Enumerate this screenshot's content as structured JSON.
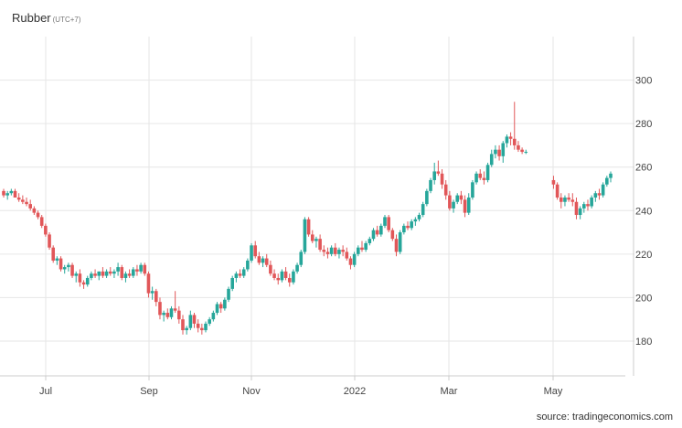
{
  "title": "Rubber",
  "timezone": "(UTC+7)",
  "source": "source: tradingeconomics.com",
  "colors": {
    "up": "#26a69a",
    "down": "#e15759",
    "grid": "#e6e6e6",
    "axis": "#cccccc"
  },
  "chart_data": {
    "type": "candlestick",
    "title": "Rubber",
    "y_ticks": [
      180,
      200,
      220,
      240,
      260,
      280,
      300
    ],
    "ylim": [
      164,
      320
    ],
    "x_ticks": [
      "Jul",
      "Sep",
      "Nov",
      "2022",
      "Mar",
      "May"
    ],
    "y_axis_position": "right",
    "grid": true,
    "ohlc_daily_approx": [
      [
        249,
        250,
        246,
        247
      ],
      [
        247,
        249,
        245,
        248
      ],
      [
        248,
        250,
        247,
        249
      ],
      [
        249,
        250,
        246,
        246
      ],
      [
        246,
        248,
        244,
        245
      ],
      [
        245,
        247,
        243,
        244
      ],
      [
        244,
        246,
        242,
        243
      ],
      [
        243,
        245,
        240,
        241
      ],
      [
        241,
        242,
        238,
        239
      ],
      [
        239,
        240,
        236,
        237
      ],
      [
        237,
        238,
        232,
        233
      ],
      [
        233,
        234,
        228,
        229
      ],
      [
        229,
        230,
        222,
        223
      ],
      [
        223,
        224,
        216,
        217
      ],
      [
        217,
        219,
        215,
        218
      ],
      [
        218,
        219,
        212,
        213
      ],
      [
        213,
        215,
        211,
        214
      ],
      [
        214,
        216,
        212,
        215
      ],
      [
        215,
        216,
        209,
        210
      ],
      [
        210,
        212,
        207,
        211
      ],
      [
        211,
        213,
        205,
        207
      ],
      [
        207,
        208,
        204,
        206
      ],
      [
        206,
        210,
        205,
        209
      ],
      [
        209,
        212,
        208,
        211
      ],
      [
        211,
        213,
        209,
        210
      ],
      [
        210,
        212,
        208,
        212
      ],
      [
        212,
        214,
        209,
        210
      ],
      [
        210,
        213,
        209,
        212
      ],
      [
        212,
        214,
        210,
        211
      ],
      [
        211,
        213,
        209,
        212
      ],
      [
        212,
        216,
        210,
        214
      ],
      [
        214,
        215,
        208,
        209
      ],
      [
        209,
        212,
        207,
        211
      ],
      [
        211,
        213,
        209,
        210
      ],
      [
        210,
        214,
        209,
        213
      ],
      [
        213,
        215,
        210,
        212
      ],
      [
        212,
        216,
        211,
        215
      ],
      [
        215,
        216,
        210,
        211
      ],
      [
        211,
        212,
        200,
        202
      ],
      [
        202,
        205,
        199,
        203
      ],
      [
        203,
        204,
        196,
        198
      ],
      [
        198,
        200,
        190,
        192
      ],
      [
        192,
        194,
        189,
        193
      ],
      [
        193,
        195,
        190,
        191
      ],
      [
        191,
        196,
        190,
        195
      ],
      [
        195,
        203,
        193,
        194
      ],
      [
        194,
        196,
        188,
        190
      ],
      [
        190,
        192,
        183,
        185
      ],
      [
        185,
        187,
        183,
        186
      ],
      [
        186,
        194,
        185,
        192
      ],
      [
        192,
        193,
        186,
        188
      ],
      [
        188,
        190,
        184,
        186
      ],
      [
        186,
        188,
        183,
        185
      ],
      [
        185,
        189,
        184,
        188
      ],
      [
        188,
        191,
        187,
        190
      ],
      [
        190,
        194,
        189,
        193
      ],
      [
        193,
        198,
        192,
        197
      ],
      [
        197,
        198,
        193,
        195
      ],
      [
        195,
        200,
        194,
        199
      ],
      [
        199,
        205,
        198,
        204
      ],
      [
        204,
        210,
        203,
        209
      ],
      [
        209,
        212,
        207,
        211
      ],
      [
        211,
        213,
        209,
        210
      ],
      [
        210,
        214,
        209,
        213
      ],
      [
        213,
        218,
        212,
        217
      ],
      [
        217,
        225,
        216,
        224
      ],
      [
        224,
        226,
        218,
        219
      ],
      [
        219,
        221,
        215,
        216
      ],
      [
        216,
        219,
        214,
        218
      ],
      [
        218,
        220,
        214,
        215
      ],
      [
        215,
        217,
        210,
        211
      ],
      [
        211,
        213,
        208,
        209
      ],
      [
        209,
        211,
        206,
        208
      ],
      [
        208,
        213,
        207,
        212
      ],
      [
        212,
        214,
        208,
        209
      ],
      [
        209,
        211,
        205,
        207
      ],
      [
        207,
        213,
        206,
        212
      ],
      [
        212,
        216,
        211,
        215
      ],
      [
        215,
        222,
        214,
        221
      ],
      [
        221,
        237,
        220,
        236
      ],
      [
        236,
        237,
        228,
        229
      ],
      [
        229,
        231,
        225,
        226
      ],
      [
        226,
        228,
        223,
        227
      ],
      [
        227,
        229,
        221,
        222
      ],
      [
        222,
        224,
        219,
        221
      ],
      [
        221,
        223,
        218,
        220
      ],
      [
        220,
        224,
        219,
        223
      ],
      [
        223,
        225,
        219,
        220
      ],
      [
        220,
        223,
        218,
        222
      ],
      [
        222,
        224,
        219,
        221
      ],
      [
        221,
        223,
        217,
        218
      ],
      [
        218,
        219,
        213,
        215
      ],
      [
        215,
        221,
        214,
        220
      ],
      [
        220,
        224,
        219,
        223
      ],
      [
        223,
        226,
        221,
        222
      ],
      [
        222,
        226,
        221,
        225
      ],
      [
        225,
        228,
        224,
        227
      ],
      [
        227,
        232,
        226,
        231
      ],
      [
        231,
        233,
        228,
        229
      ],
      [
        229,
        234,
        228,
        233
      ],
      [
        233,
        238,
        232,
        237
      ],
      [
        237,
        238,
        230,
        231
      ],
      [
        231,
        232,
        226,
        227
      ],
      [
        227,
        229,
        219,
        221
      ],
      [
        221,
        231,
        220,
        230
      ],
      [
        230,
        234,
        229,
        233
      ],
      [
        233,
        235,
        231,
        232
      ],
      [
        232,
        236,
        231,
        235
      ],
      [
        235,
        237,
        233,
        236
      ],
      [
        236,
        239,
        235,
        238
      ],
      [
        238,
        244,
        237,
        243
      ],
      [
        243,
        250,
        242,
        249
      ],
      [
        249,
        255,
        248,
        254
      ],
      [
        254,
        262,
        252,
        258
      ],
      [
        258,
        263,
        256,
        257
      ],
      [
        257,
        259,
        250,
        252
      ],
      [
        252,
        254,
        245,
        247
      ],
      [
        247,
        249,
        240,
        241
      ],
      [
        241,
        245,
        239,
        244
      ],
      [
        244,
        248,
        243,
        247
      ],
      [
        247,
        249,
        243,
        245
      ],
      [
        245,
        247,
        237,
        239
      ],
      [
        239,
        248,
        238,
        246
      ],
      [
        246,
        254,
        245,
        253
      ],
      [
        253,
        258,
        252,
        257
      ],
      [
        257,
        259,
        254,
        255
      ],
      [
        255,
        258,
        252,
        254
      ],
      [
        254,
        262,
        253,
        261
      ],
      [
        261,
        268,
        260,
        266
      ],
      [
        266,
        270,
        264,
        268
      ],
      [
        268,
        270,
        263,
        265
      ],
      [
        265,
        272,
        262,
        271
      ],
      [
        271,
        275,
        269,
        274
      ],
      [
        274,
        276,
        270,
        273
      ],
      [
        273,
        290,
        268,
        270
      ],
      [
        270,
        272,
        267,
        268
      ],
      [
        268,
        269,
        266,
        267
      ],
      [
        267,
        268,
        266,
        267
      ],
      [
        254,
        256,
        250,
        252
      ],
      [
        252,
        253,
        245,
        246
      ],
      [
        246,
        248,
        241,
        244
      ],
      [
        244,
        247,
        242,
        246
      ],
      [
        246,
        248,
        244,
        245
      ],
      [
        245,
        248,
        242,
        244
      ],
      [
        244,
        246,
        236,
        238
      ],
      [
        238,
        242,
        236,
        241
      ],
      [
        241,
        244,
        239,
        243
      ],
      [
        243,
        245,
        240,
        242
      ],
      [
        242,
        247,
        241,
        246
      ],
      [
        246,
        249,
        244,
        248
      ],
      [
        248,
        250,
        245,
        247
      ],
      [
        247,
        253,
        246,
        252
      ],
      [
        252,
        256,
        251,
        255
      ],
      [
        255,
        258,
        253,
        257
      ]
    ]
  }
}
